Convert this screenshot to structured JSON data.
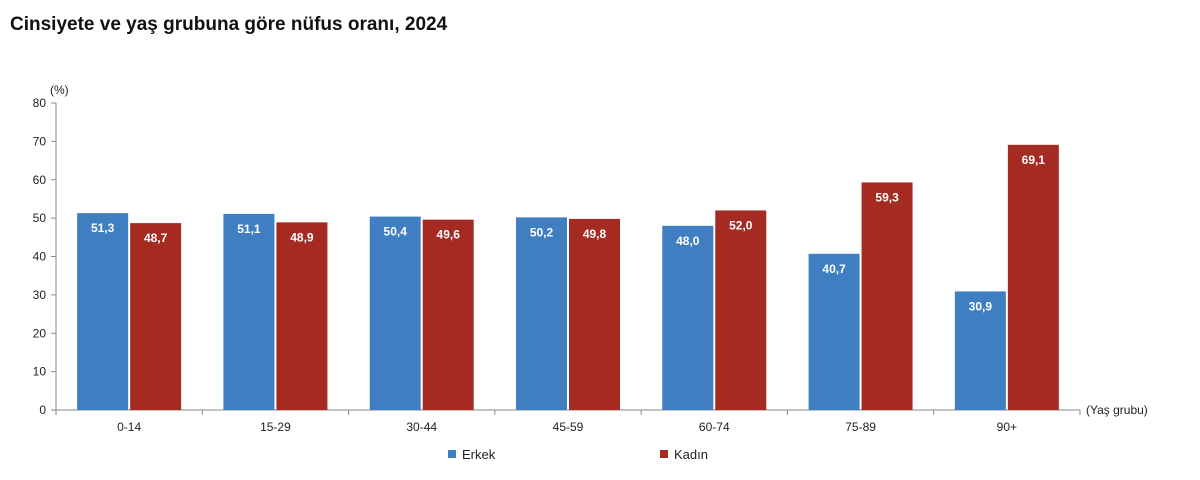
{
  "chart_data": {
    "type": "bar",
    "title": "Cinsiyete ve yaş grubuna göre nüfus oranı, 2024",
    "ylabel": "(%)",
    "xlabel": "(Yaş grubu)",
    "ylim": [
      0,
      80
    ],
    "yticks": [
      "0",
      "10",
      "20",
      "30",
      "40",
      "50",
      "60",
      "70",
      "80"
    ],
    "categories": [
      "0-14",
      "15-29",
      "30-44",
      "45-59",
      "60-74",
      "75-89",
      "90+"
    ],
    "series": [
      {
        "name": "Erkek",
        "color": "#3f7fc1",
        "values": [
          51.3,
          51.1,
          50.4,
          50.2,
          48.0,
          40.7,
          30.9
        ],
        "labels": [
          "51,3",
          "51,1",
          "50,4",
          "50,2",
          "48,0",
          "40,7",
          "30,9"
        ]
      },
      {
        "name": "Kadın",
        "color": "#a52a22",
        "values": [
          48.7,
          48.9,
          49.6,
          49.8,
          52.0,
          59.3,
          69.1
        ],
        "labels": [
          "48,7",
          "48,9",
          "49,6",
          "49,8",
          "52,0",
          "59,3",
          "69,1"
        ]
      }
    ],
    "grid": false,
    "legend_position": "bottom"
  }
}
